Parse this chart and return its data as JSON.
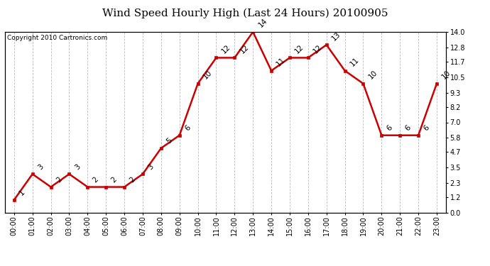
{
  "title": "Wind Speed Hourly High (Last 24 Hours) 20100905",
  "copyright": "Copyright 2010 Cartronics.com",
  "hours": [
    "00:00",
    "01:00",
    "02:00",
    "03:00",
    "04:00",
    "05:00",
    "06:00",
    "07:00",
    "08:00",
    "09:00",
    "10:00",
    "11:00",
    "12:00",
    "13:00",
    "14:00",
    "15:00",
    "16:00",
    "17:00",
    "18:00",
    "19:00",
    "20:00",
    "21:00",
    "22:00",
    "23:00"
  ],
  "values": [
    1,
    3,
    2,
    3,
    2,
    2,
    2,
    3,
    5,
    6,
    10,
    12,
    12,
    14,
    11,
    12,
    12,
    13,
    11,
    10,
    6,
    6,
    6,
    10
  ],
  "line_color": "#cc0000",
  "marker_color": "#cc0000",
  "marker_face": "#cc0000",
  "bg_color": "#ffffff",
  "grid_color": "#bbbbbb",
  "ylim": [
    0.0,
    14.0
  ],
  "yticks_right": [
    0.0,
    1.2,
    2.3,
    3.5,
    4.7,
    5.8,
    7.0,
    8.2,
    9.3,
    10.5,
    11.7,
    12.8,
    14.0
  ],
  "title_fontsize": 11,
  "label_fontsize": 7,
  "annot_fontsize": 7.5,
  "copyright_fontsize": 6.5
}
